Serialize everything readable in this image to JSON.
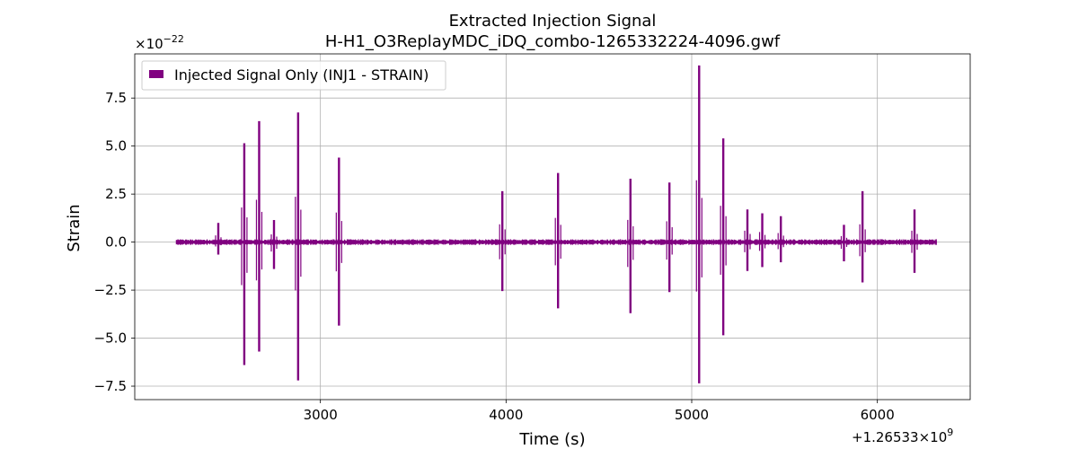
{
  "chart_data": {
    "type": "line",
    "title": "Extracted Injection Signal",
    "subtitle": "H-H1_O3ReplayMDC_iDQ_combo-1265332224-4096.gwf",
    "xlabel": "Time (s)",
    "ylabel": "Strain",
    "x_offset_label": "+1.26533×10",
    "x_offset_exp": "9",
    "y_scale_label": "×10",
    "y_scale_exp": "−22",
    "xlim": [
      2000,
      6500
    ],
    "ylim": [
      -8.2,
      9.8
    ],
    "x_ticks": [
      3000,
      4000,
      5000,
      6000
    ],
    "x_tick_labels": [
      "3000",
      "4000",
      "5000",
      "6000"
    ],
    "y_ticks": [
      -7.5,
      -5.0,
      -2.5,
      0.0,
      2.5,
      5.0,
      7.5
    ],
    "y_tick_labels": [
      "−7.5",
      "−5.0",
      "−2.5",
      "0.0",
      "2.5",
      "5.0",
      "7.5"
    ],
    "grid": true,
    "legend_position": "top-left",
    "series": [
      {
        "name": "Injected Signal Only (INJ1 - STRAIN)",
        "color": "#800080",
        "x_range": [
          2224,
          6320
        ],
        "baseline_amplitude": 0.15,
        "spikes": [
          {
            "x": 2450,
            "pos": 1.0,
            "neg": -0.65
          },
          {
            "x": 2590,
            "pos": 5.15,
            "neg": -6.4
          },
          {
            "x": 2670,
            "pos": 6.3,
            "neg": -5.7
          },
          {
            "x": 2750,
            "pos": 1.15,
            "neg": -1.4
          },
          {
            "x": 2880,
            "pos": 6.75,
            "neg": -7.2
          },
          {
            "x": 3100,
            "pos": 4.4,
            "neg": -4.35
          },
          {
            "x": 3980,
            "pos": 2.65,
            "neg": -2.55
          },
          {
            "x": 4280,
            "pos": 3.6,
            "neg": -3.45
          },
          {
            "x": 4670,
            "pos": 3.3,
            "neg": -3.7
          },
          {
            "x": 4880,
            "pos": 3.1,
            "neg": -2.6
          },
          {
            "x": 5040,
            "pos": 9.2,
            "neg": -7.35
          },
          {
            "x": 5170,
            "pos": 5.4,
            "neg": -4.85
          },
          {
            "x": 5300,
            "pos": 1.7,
            "neg": -1.5
          },
          {
            "x": 5380,
            "pos": 1.5,
            "neg": -1.3
          },
          {
            "x": 5480,
            "pos": 1.35,
            "neg": -1.05
          },
          {
            "x": 5820,
            "pos": 0.9,
            "neg": -1.0
          },
          {
            "x": 5920,
            "pos": 2.65,
            "neg": -2.1
          },
          {
            "x": 6200,
            "pos": 1.7,
            "neg": -1.6
          }
        ]
      }
    ]
  }
}
